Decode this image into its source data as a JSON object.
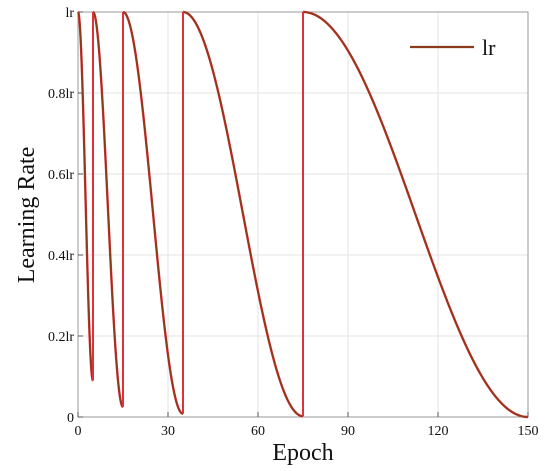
{
  "chart_data": {
    "type": "line",
    "title": "",
    "xlabel": "Epoch",
    "ylabel": "Learning Rate",
    "xlim": [
      0,
      150
    ],
    "ylim": [
      0,
      1
    ],
    "x_ticks": [
      0,
      30,
      60,
      90,
      120,
      150
    ],
    "x_tick_labels": [
      "0",
      "30",
      "60",
      "90",
      "120",
      "150"
    ],
    "y_ticks": [
      0,
      0.2,
      0.4,
      0.6,
      0.8,
      1.0
    ],
    "y_tick_labels": [
      "0",
      "0.2lr",
      "0.4lr",
      "0.6lr",
      "0.8lr",
      "lr"
    ],
    "grid": true,
    "legend": "top-right",
    "series": [
      {
        "name": "lr",
        "color": "#8B3A1A",
        "restart_color": "#E0303A",
        "schedule": "cosine annealing with warm restarts",
        "cycles": [
          {
            "start": 0,
            "end": 5,
            "min": 0.09
          },
          {
            "start": 5,
            "end": 15,
            "min": 0.025
          },
          {
            "start": 15,
            "end": 35,
            "min": 0.008
          },
          {
            "start": 35,
            "end": 75,
            "min": 0.002
          },
          {
            "start": 75,
            "end": 150,
            "min": 0.0
          }
        ]
      }
    ]
  }
}
